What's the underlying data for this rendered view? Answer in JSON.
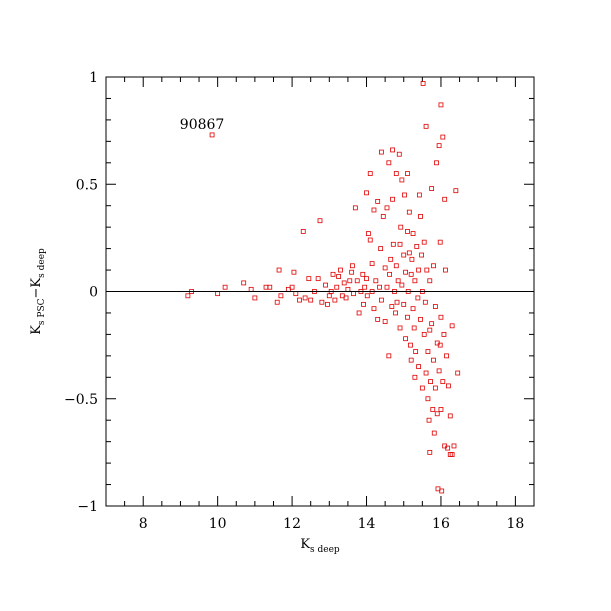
{
  "chart_data": {
    "type": "scatter",
    "xlabel": {
      "main": "K",
      "sub1": "s deep"
    },
    "ylabel": {
      "main1": "K",
      "sub1": "s PSC",
      "dash": "−K",
      "sub2": "s deep"
    },
    "xlim": [
      7,
      18.5
    ],
    "ylim": [
      -1,
      1
    ],
    "xticks": [
      8,
      10,
      12,
      14,
      16,
      18
    ],
    "xtick_labels": [
      "8",
      "10",
      "12",
      "14",
      "16",
      "18"
    ],
    "yticks": [
      -1,
      -0.5,
      0,
      0.5,
      1
    ],
    "ytick_labels": [
      "−1",
      "−0.5",
      "0",
      "0.5",
      "1"
    ],
    "annotation": {
      "text": "90867",
      "x": 9.85,
      "y": 0.74
    },
    "reference_line_y": 0,
    "marker": "open-square",
    "color": "#e00000",
    "series": [
      {
        "points": [
          [
            9.2,
            -0.02
          ],
          [
            9.3,
            0.0
          ],
          [
            9.85,
            0.73
          ],
          [
            10.0,
            -0.01
          ],
          [
            10.2,
            0.02
          ],
          [
            10.7,
            0.04
          ],
          [
            10.9,
            0.01
          ],
          [
            11.0,
            -0.03
          ],
          [
            11.3,
            0.02
          ],
          [
            11.4,
            0.02
          ],
          [
            11.6,
            -0.05
          ],
          [
            11.7,
            -0.02
          ],
          [
            11.65,
            0.1
          ],
          [
            11.9,
            0.01
          ],
          [
            12.0,
            0.02
          ],
          [
            12.05,
            0.09
          ],
          [
            12.1,
            -0.01
          ],
          [
            12.2,
            -0.04
          ],
          [
            12.3,
            0.28
          ],
          [
            12.35,
            -0.03
          ],
          [
            12.45,
            0.06
          ],
          [
            12.5,
            -0.04
          ],
          [
            12.6,
            0.0
          ],
          [
            12.7,
            0.06
          ],
          [
            12.75,
            0.33
          ],
          [
            12.8,
            -0.05
          ],
          [
            12.9,
            0.03
          ],
          [
            12.95,
            -0.06
          ],
          [
            13.0,
            -0.02
          ],
          [
            13.05,
            0.0
          ],
          [
            13.1,
            0.08
          ],
          [
            13.15,
            -0.04
          ],
          [
            13.2,
            0.02
          ],
          [
            13.25,
            0.07
          ],
          [
            13.3,
            0.1
          ],
          [
            13.35,
            -0.02
          ],
          [
            13.4,
            0.04
          ],
          [
            13.45,
            -0.03
          ],
          [
            13.5,
            0.01
          ],
          [
            13.55,
            0.05
          ],
          [
            13.6,
            0.09
          ],
          [
            13.62,
            0.12
          ],
          [
            13.65,
            -0.01
          ],
          [
            13.7,
            0.39
          ],
          [
            13.75,
            0.05
          ],
          [
            13.8,
            -0.1
          ],
          [
            13.85,
            0.0
          ],
          [
            13.9,
            0.08
          ],
          [
            13.92,
            -0.06
          ],
          [
            13.95,
            0.02
          ],
          [
            14.0,
            0.46
          ],
          [
            14.0,
            0.06
          ],
          [
            14.02,
            -0.02
          ],
          [
            14.05,
            0.27
          ],
          [
            14.1,
            0.24
          ],
          [
            14.1,
            0.55
          ],
          [
            14.15,
            0.0
          ],
          [
            14.15,
            0.13
          ],
          [
            14.2,
            -0.08
          ],
          [
            14.2,
            0.38
          ],
          [
            14.25,
            0.05
          ],
          [
            14.3,
            0.42
          ],
          [
            14.3,
            -0.13
          ],
          [
            14.35,
            0.02
          ],
          [
            14.38,
            0.2
          ],
          [
            14.4,
            0.65
          ],
          [
            14.4,
            -0.04
          ],
          [
            14.45,
            0.35
          ],
          [
            14.5,
            0.11
          ],
          [
            14.5,
            -0.14
          ],
          [
            14.55,
            0.02
          ],
          [
            14.55,
            0.39
          ],
          [
            14.6,
            0.6
          ],
          [
            14.6,
            -0.3
          ],
          [
            14.62,
            0.08
          ],
          [
            14.65,
            0.15
          ],
          [
            14.68,
            -0.07
          ],
          [
            14.7,
            0.43
          ],
          [
            14.7,
            0.66
          ],
          [
            14.72,
            0.22
          ],
          [
            14.75,
            0.0
          ],
          [
            14.78,
            -0.1
          ],
          [
            14.8,
            0.55
          ],
          [
            14.8,
            0.12
          ],
          [
            14.82,
            -0.05
          ],
          [
            14.85,
            0.05
          ],
          [
            14.88,
            0.64
          ],
          [
            14.9,
            0.22
          ],
          [
            14.9,
            -0.17
          ],
          [
            14.92,
            0.3
          ],
          [
            14.95,
            0.52
          ],
          [
            14.95,
            0.03
          ],
          [
            15.0,
            -0.06
          ],
          [
            15.0,
            0.17
          ],
          [
            15.02,
            0.45
          ],
          [
            15.05,
            -0.22
          ],
          [
            15.05,
            0.09
          ],
          [
            15.1,
            0.28
          ],
          [
            15.1,
            -0.12
          ],
          [
            15.12,
            0.0
          ],
          [
            15.15,
            0.37
          ],
          [
            15.15,
            0.18
          ],
          [
            15.18,
            -0.25
          ],
          [
            15.2,
            0.08
          ],
          [
            15.2,
            -0.32
          ],
          [
            15.22,
            0.15
          ],
          [
            15.25,
            -0.08
          ],
          [
            15.25,
            0.27
          ],
          [
            15.28,
            -0.17
          ],
          [
            15.3,
            0.05
          ],
          [
            15.3,
            -0.4
          ],
          [
            15.32,
            -0.28
          ],
          [
            15.35,
            0.21
          ],
          [
            15.38,
            -0.03
          ],
          [
            15.4,
            0.1
          ],
          [
            15.4,
            -0.35
          ],
          [
            15.42,
            0.45
          ],
          [
            15.45,
            -0.13
          ],
          [
            15.48,
            0.17
          ],
          [
            15.5,
            -0.45
          ],
          [
            15.5,
            0.0
          ],
          [
            15.52,
            0.97
          ],
          [
            15.55,
            -0.2
          ],
          [
            15.55,
            0.23
          ],
          [
            15.58,
            -0.05
          ],
          [
            15.6,
            0.77
          ],
          [
            15.6,
            -0.38
          ],
          [
            15.62,
            0.1
          ],
          [
            15.65,
            -0.28
          ],
          [
            15.65,
            -0.5
          ],
          [
            15.68,
            -0.6
          ],
          [
            15.7,
            0.05
          ],
          [
            15.7,
            -0.75
          ],
          [
            15.72,
            -0.42
          ],
          [
            15.75,
            -0.15
          ],
          [
            15.75,
            0.48
          ],
          [
            15.78,
            -0.55
          ],
          [
            15.8,
            -0.32
          ],
          [
            15.8,
            0.12
          ],
          [
            15.82,
            -0.66
          ],
          [
            15.85,
            -0.07
          ],
          [
            15.85,
            -0.45
          ],
          [
            15.88,
            0.6
          ],
          [
            15.9,
            -0.24
          ],
          [
            15.9,
            -0.57
          ],
          [
            15.92,
            -0.92
          ],
          [
            15.95,
            0.68
          ],
          [
            15.95,
            -0.37
          ],
          [
            15.98,
            0.23
          ],
          [
            16.0,
            0.87
          ],
          [
            16.0,
            -0.12
          ],
          [
            16.0,
            -0.55
          ],
          [
            16.02,
            -0.93
          ],
          [
            16.05,
            0.72
          ],
          [
            16.05,
            -0.42
          ],
          [
            16.08,
            -0.2
          ],
          [
            16.1,
            0.43
          ],
          [
            16.1,
            -0.72
          ],
          [
            16.12,
            0.1
          ],
          [
            16.15,
            -0.3
          ],
          [
            16.18,
            -0.73
          ],
          [
            16.2,
            -0.44
          ],
          [
            16.25,
            -0.76
          ],
          [
            16.25,
            -0.58
          ],
          [
            16.3,
            -0.16
          ],
          [
            16.35,
            -0.72
          ],
          [
            16.4,
            0.47
          ],
          [
            16.45,
            -0.38
          ],
          [
            16.3,
            -0.76
          ],
          [
            15.98,
            -0.25
          ],
          [
            15.7,
            -0.18
          ],
          [
            15.45,
            0.35
          ],
          [
            15.1,
            0.55
          ]
        ]
      }
    ]
  }
}
